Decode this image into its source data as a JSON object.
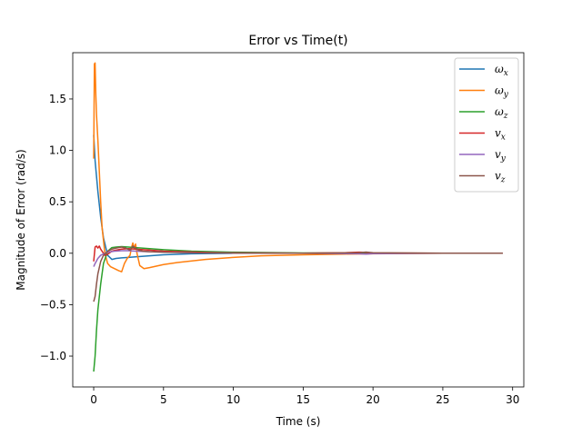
{
  "chart_data": {
    "type": "line",
    "title": "Error vs Time(t)",
    "xlabel": "Time (s)",
    "ylabel": "Magnitude of Error (rad/s)",
    "xlim": [
      -1.5,
      30.8
    ],
    "ylim": [
      -1.3,
      1.95
    ],
    "xticks": [
      0,
      5,
      10,
      15,
      20,
      25,
      30
    ],
    "yticks": [
      -1.0,
      -0.5,
      0.0,
      0.5,
      1.0,
      1.5
    ],
    "xtick_labels": [
      "0",
      "5",
      "10",
      "15",
      "20",
      "25",
      "30"
    ],
    "ytick_labels": [
      "−1.0",
      "−0.5",
      "0.0",
      "0.5",
      "1.0",
      "1.5"
    ],
    "grid": false,
    "legend_position": "top-right",
    "series": [
      {
        "name": "ωx",
        "base": "ω",
        "sub": "x",
        "color": "#1f77b4",
        "x": [
          0,
          0.1,
          0.3,
          0.5,
          0.7,
          1.0,
          1.3,
          1.6,
          2.0,
          2.5,
          3.0,
          4.0,
          5.0,
          7.0,
          10.0,
          15.0,
          20.0,
          25.0,
          29.3
        ],
        "y": [
          1.15,
          0.9,
          0.6,
          0.35,
          0.15,
          -0.02,
          -0.06,
          -0.05,
          -0.045,
          -0.04,
          -0.035,
          -0.025,
          -0.015,
          -0.005,
          0.0,
          0.0,
          0.0,
          0.0,
          0.0
        ]
      },
      {
        "name": "ωy",
        "base": "ω",
        "sub": "y",
        "color": "#ff7f0e",
        "x": [
          0,
          0.05,
          0.1,
          0.15,
          0.2,
          0.3,
          0.4,
          0.5,
          0.6,
          0.8,
          1.0,
          1.2,
          1.5,
          1.8,
          2.0,
          2.2,
          2.4,
          2.6,
          2.7,
          2.8,
          2.9,
          3.0,
          3.1,
          3.3,
          3.6,
          4.0,
          5.0,
          6.0,
          8.0,
          10.0,
          12.0,
          15.0,
          18.0,
          20.0,
          25.0,
          29.3
        ],
        "y": [
          0.92,
          1.84,
          1.85,
          1.55,
          1.35,
          1.1,
          0.8,
          0.5,
          0.25,
          0.0,
          -0.1,
          -0.13,
          -0.15,
          -0.17,
          -0.18,
          -0.1,
          -0.05,
          -0.02,
          0.05,
          0.1,
          0.05,
          0.09,
          0.0,
          -0.12,
          -0.15,
          -0.14,
          -0.11,
          -0.09,
          -0.06,
          -0.04,
          -0.025,
          -0.015,
          -0.008,
          -0.005,
          0.0,
          0.0
        ]
      },
      {
        "name": "ωz",
        "base": "ω",
        "sub": "z",
        "color": "#2ca02c",
        "x": [
          0,
          0.1,
          0.2,
          0.3,
          0.5,
          0.7,
          1.0,
          1.3,
          1.6,
          2.0,
          2.5,
          3.0,
          4.0,
          5.0,
          7.0,
          10.0,
          15.0,
          20.0,
          25.0,
          29.3
        ],
        "y": [
          -1.15,
          -1.0,
          -0.75,
          -0.55,
          -0.3,
          -0.1,
          0.02,
          0.055,
          0.06,
          0.065,
          0.06,
          0.055,
          0.045,
          0.035,
          0.02,
          0.01,
          0.003,
          0.0,
          0.0,
          0.0
        ]
      },
      {
        "name": "vx",
        "base": "v",
        "sub": "x",
        "color": "#d62728",
        "x": [
          0,
          0.1,
          0.2,
          0.3,
          0.4,
          0.5,
          0.6,
          0.7,
          0.8,
          1.0,
          1.3,
          1.6,
          2.0,
          2.5,
          3.0,
          4.0,
          5.0,
          8.0,
          10.0,
          15.0,
          18.0,
          19.0,
          19.5,
          20.0,
          25.0,
          29.3
        ],
        "y": [
          -0.08,
          0.06,
          0.07,
          0.05,
          0.07,
          0.04,
          0.02,
          0.0,
          -0.02,
          -0.01,
          0.02,
          0.03,
          0.04,
          0.045,
          0.04,
          0.03,
          0.02,
          0.008,
          0.004,
          0.001,
          0.005,
          0.01,
          0.008,
          0.003,
          0.0,
          0.0
        ]
      },
      {
        "name": "vy",
        "base": "v",
        "sub": "y",
        "color": "#9467bd",
        "x": [
          0,
          0.1,
          0.3,
          0.5,
          0.8,
          1.0,
          1.5,
          2.0,
          2.5,
          3.0,
          4.0,
          5.0,
          8.0,
          10.0,
          15.0,
          19.0,
          19.5,
          20.0,
          25.0,
          29.3
        ],
        "y": [
          -0.13,
          -0.1,
          -0.05,
          -0.02,
          0.0,
          0.01,
          0.02,
          0.025,
          0.025,
          0.02,
          0.015,
          0.01,
          0.004,
          0.002,
          0.0,
          -0.005,
          -0.008,
          -0.004,
          0.0,
          0.0
        ]
      },
      {
        "name": "vz",
        "base": "v",
        "sub": "z",
        "color": "#8c564b",
        "x": [
          0,
          0.1,
          0.2,
          0.3,
          0.5,
          0.7,
          1.0,
          1.3,
          1.6,
          2.0,
          2.3,
          2.6,
          2.8,
          3.0,
          3.2,
          3.5,
          4.0,
          5.0,
          8.0,
          10.0,
          15.0,
          19.0,
          19.5,
          20.0,
          25.0,
          29.3
        ],
        "y": [
          -0.47,
          -0.42,
          -0.3,
          -0.2,
          -0.08,
          -0.02,
          0.02,
          0.04,
          0.05,
          0.06,
          0.05,
          0.03,
          0.07,
          0.05,
          0.03,
          0.02,
          0.015,
          0.01,
          0.004,
          0.002,
          0.0,
          0.005,
          0.012,
          0.005,
          0.0,
          0.0
        ]
      }
    ]
  }
}
